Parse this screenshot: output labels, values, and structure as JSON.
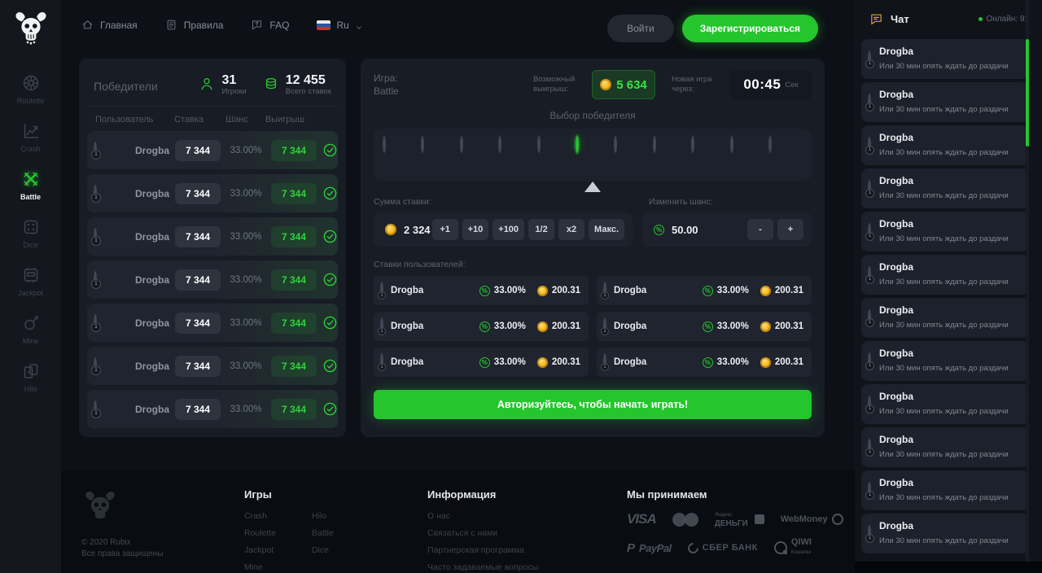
{
  "colors": {
    "accent_green": "#25c52e",
    "coin_gold": "#f3b81f",
    "panel_background": "#181c25",
    "page_background": "#0d1016"
  },
  "header": {
    "nav": [
      {
        "label": "Главная",
        "icon": "home-icon"
      },
      {
        "label": "Правила",
        "icon": "rules-icon"
      },
      {
        "label": "FAQ",
        "icon": "faq-icon"
      }
    ],
    "language": "Ru",
    "login_label": "Войти",
    "register_label": "Зарегистрироваться"
  },
  "sidebar": {
    "items": [
      {
        "label": "Roulette",
        "icon": "roulette-icon",
        "active": false
      },
      {
        "label": "Crash",
        "icon": "crash-icon",
        "active": false
      },
      {
        "label": "Battle",
        "icon": "battle-icon",
        "active": true
      },
      {
        "label": "Dice",
        "icon": "dice-icon",
        "active": false
      },
      {
        "label": "Jackpot",
        "icon": "jackpot-icon",
        "active": false
      },
      {
        "label": "Mine",
        "icon": "mine-icon",
        "active": false
      },
      {
        "label": "Hilo",
        "icon": "hilo-icon",
        "active": false
      }
    ]
  },
  "winners": {
    "title": "Победители",
    "players_count": "31",
    "players_label": "Игроки",
    "bets_count": "12 455",
    "bets_label": "Всего ставок",
    "columns": {
      "user": "Пользователь",
      "bet": "Ставка",
      "chance": "Шанс",
      "win": "Выигрыш"
    },
    "rows": [
      {
        "user": "Drogba",
        "level": "1",
        "bet": "7 344",
        "chance": "33.00%",
        "win": "7 344"
      },
      {
        "user": "Drogba",
        "level": "1",
        "bet": "7 344",
        "chance": "33.00%",
        "win": "7 344"
      },
      {
        "user": "Drogba",
        "level": "1",
        "bet": "7 344",
        "chance": "33.00%",
        "win": "7 344"
      },
      {
        "user": "Drogba",
        "level": "1",
        "bet": "7 344",
        "chance": "33.00%",
        "win": "7 344"
      },
      {
        "user": "Drogba",
        "level": "1",
        "bet": "7 344",
        "chance": "33.00%",
        "win": "7 344"
      },
      {
        "user": "Drogba",
        "level": "1",
        "bet": "7 344",
        "chance": "33.00%",
        "win": "7 344"
      },
      {
        "user": "Drogba",
        "level": "1",
        "bet": "7 344",
        "chance": "33.00%",
        "win": "7 344"
      }
    ]
  },
  "game": {
    "title_line1": "Игра:",
    "title_line2": "Battle",
    "possible_win_label": "Возможный выигрыш:",
    "possible_win": "5 634",
    "new_game_label": "Новая игра через:",
    "timer": "00:45",
    "timer_unit": "Сек",
    "winner_select_label": "Выбор победителя",
    "avatar_row": {
      "count": 11,
      "selected_index": 5
    },
    "bet_sum_label": "Сумма ставки:",
    "bet_amount": "2 324",
    "bet_buttons": [
      "+1",
      "+10",
      "+100",
      "1/2",
      "x2",
      "Макс."
    ],
    "chance_label": "Изменить шанс:",
    "chance_value": "50.00",
    "chance_minus": "-",
    "chance_plus": "+",
    "user_bets_label": "Ставки пользователей:",
    "user_bets": [
      {
        "name": "Drogba",
        "level": "1",
        "chance": "33.00%",
        "amount": "200.31"
      },
      {
        "name": "Drogba",
        "level": "1",
        "chance": "33.00%",
        "amount": "200.31"
      },
      {
        "name": "Drogba",
        "level": "1",
        "chance": "33.00%",
        "amount": "200.31"
      },
      {
        "name": "Drogba",
        "level": "1",
        "chance": "33.00%",
        "amount": "200.31"
      },
      {
        "name": "Drogba",
        "level": "1",
        "chance": "33.00%",
        "amount": "200.31"
      },
      {
        "name": "Drogba",
        "level": "1",
        "chance": "33.00%",
        "amount": "200.31"
      }
    ],
    "cta_label": "Авторизуйтесь, чтобы начать играть!"
  },
  "chat": {
    "title": "Чат",
    "icon": "chat-icon",
    "online_label": "Онлайн: 91",
    "messages": [
      {
        "name": "Drogba",
        "level": "1",
        "text": "Или 30 мин опять ждать до раздачи"
      },
      {
        "name": "Drogba",
        "level": "1",
        "text": "Или 30 мин опять ждать до раздачи"
      },
      {
        "name": "Drogba",
        "level": "1",
        "text": "Или 30 мин опять ждать до раздачи"
      },
      {
        "name": "Drogba",
        "level": "1",
        "text": "Или 30 мин опять ждать до раздачи"
      },
      {
        "name": "Drogba",
        "level": "1",
        "text": "Или 30 мин опять ждать до раздачи"
      },
      {
        "name": "Drogba",
        "level": "1",
        "text": "Или 30 мин опять ждать до раздачи"
      },
      {
        "name": "Drogba",
        "level": "1",
        "text": "Или 30 мин опять ждать до раздачи"
      },
      {
        "name": "Drogba",
        "level": "1",
        "text": "Или 30 мин опять ждать до раздачи"
      },
      {
        "name": "Drogba",
        "level": "1",
        "text": "Или 30 мин опять ждать до раздачи"
      },
      {
        "name": "Drogba",
        "level": "1",
        "text": "Или 30 мин опять ждать до раздачи"
      },
      {
        "name": "Drogba",
        "level": "1",
        "text": "Или 30 мин опять ждать до раздачи"
      },
      {
        "name": "Drogba",
        "level": "1",
        "text": "Или 30 мин опять ждать до раздачи"
      }
    ]
  },
  "footer": {
    "copyright_line1": "© 2020 Rubix",
    "copyright_line2": "Все права защищены",
    "games_title": "Игры",
    "games_col1": [
      "Crash",
      "Roulette",
      "Jackpot",
      "Mine"
    ],
    "games_col2": [
      "Hilo",
      "Battle",
      "Dice"
    ],
    "info_title": "Информация",
    "info_links": [
      "О нас",
      "Связаться с нами",
      "Партнерская программа",
      "Часто задаваемые вопросы"
    ],
    "payments_title": "Мы принимаем",
    "payments_row1": [
      {
        "name": "VISA",
        "type": "visa"
      },
      {
        "name": "Mastercard",
        "type": "mastercard"
      },
      {
        "name": "Яндекс Деньги",
        "type": "yandex",
        "line1": "Яндекс",
        "line2": "ДЕНЬГИ"
      },
      {
        "name": "WebMoney",
        "type": "webmoney"
      }
    ],
    "payments_row2": [
      {
        "name": "PayPal",
        "type": "paypal"
      },
      {
        "name": "СБЕР БАНК",
        "type": "sber"
      },
      {
        "name": "QIWI",
        "type": "qiwi",
        "sub": "Кошелек"
      }
    ]
  }
}
